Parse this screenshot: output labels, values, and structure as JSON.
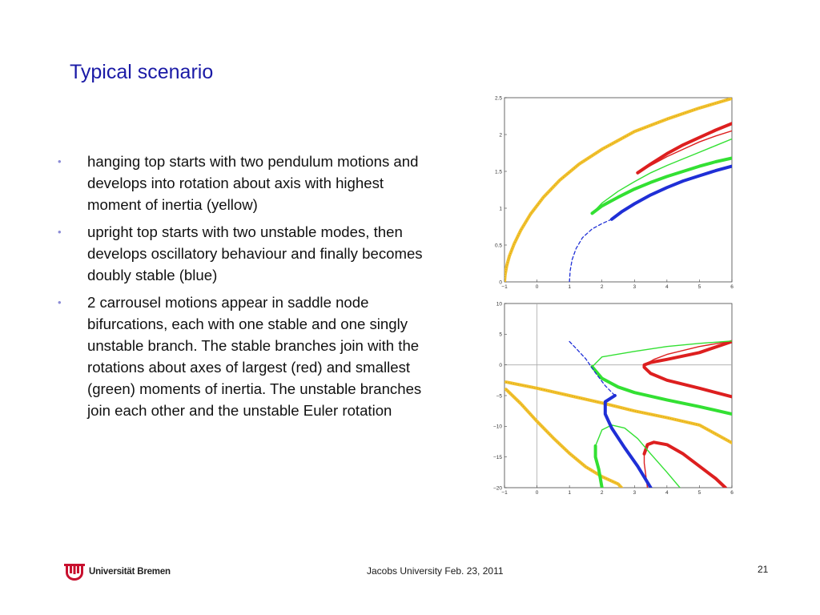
{
  "slide": {
    "title": "Typical scenario",
    "bullets": [
      "hanging top starts with two pendulum motions and develops into rotation about axis with highest moment of inertia (yellow)",
      "upright top starts with two unstable modes, then develops oscillatory behaviour and finally becomes doubly stable (blue)",
      "2 carrousel motions appear in saddle node bifurcations, each with one stable and one singly unstable branch. The stable branches join with the rotations about axes of largest (red) and smallest (green) moments of inertia. The unstable branches join each other and the unstable Euler rotation"
    ],
    "bullet_glyph": "•"
  },
  "footer": {
    "logo_text": "Universität Bremen",
    "center_text": "Jacobs University Feb. 23, 2011",
    "page_number": "21"
  },
  "colors": {
    "title": "#1a1aa6",
    "yellow": "#f2c12e",
    "red": "#dd1f1f",
    "green": "#33e033",
    "blue": "#1f2fd6",
    "logo_red": "#c8102e"
  },
  "chart_data": [
    {
      "type": "line",
      "xlim": [
        -1,
        6
      ],
      "ylim": [
        0,
        2.5
      ],
      "x_ticks": [
        "−1",
        "0",
        "1",
        "2",
        "3",
        "4",
        "5",
        "6"
      ],
      "y_ticks": [
        "0",
        "0.5",
        "1",
        "1.5",
        "2",
        "2.5"
      ],
      "series": [
        {
          "color": "yellow",
          "style": "thick",
          "points": [
            [
              -1.0,
              0.0
            ],
            [
              -0.98,
              0.1
            ],
            [
              -0.93,
              0.22
            ],
            [
              -0.85,
              0.35
            ],
            [
              -0.7,
              0.52
            ],
            [
              -0.5,
              0.7
            ],
            [
              -0.2,
              0.92
            ],
            [
              0.2,
              1.15
            ],
            [
              0.7,
              1.38
            ],
            [
              1.3,
              1.6
            ],
            [
              2.0,
              1.8
            ],
            [
              3.0,
              2.04
            ],
            [
              4.0,
              2.21
            ],
            [
              5.0,
              2.36
            ],
            [
              6.0,
              2.49
            ]
          ]
        },
        {
          "color": "red",
          "style": "thick",
          "points": [
            [
              3.1,
              1.48
            ],
            [
              3.5,
              1.6
            ],
            [
              4.0,
              1.74
            ],
            [
              4.5,
              1.86
            ],
            [
              5.0,
              1.96
            ],
            [
              5.5,
              2.06
            ],
            [
              6.0,
              2.15
            ]
          ]
        },
        {
          "color": "red",
          "style": "thin",
          "points": [
            [
              3.1,
              1.48
            ],
            [
              3.5,
              1.58
            ],
            [
              4.0,
              1.7
            ],
            [
              4.5,
              1.8
            ],
            [
              5.0,
              1.9
            ],
            [
              5.5,
              1.98
            ],
            [
              6.0,
              2.05
            ]
          ]
        },
        {
          "color": "green",
          "style": "thin",
          "points": [
            [
              1.7,
              0.93
            ],
            [
              2.0,
              1.07
            ],
            [
              2.5,
              1.23
            ],
            [
              3.0,
              1.36
            ],
            [
              3.5,
              1.48
            ],
            [
              4.0,
              1.58
            ],
            [
              4.5,
              1.67
            ],
            [
              5.0,
              1.76
            ],
            [
              5.5,
              1.85
            ],
            [
              6.0,
              1.94
            ]
          ]
        },
        {
          "color": "green",
          "style": "thick",
          "points": [
            [
              1.7,
              0.93
            ],
            [
              2.0,
              1.03
            ],
            [
              2.5,
              1.15
            ],
            [
              3.0,
              1.26
            ],
            [
              3.5,
              1.35
            ],
            [
              4.0,
              1.43
            ],
            [
              4.5,
              1.5
            ],
            [
              5.0,
              1.57
            ],
            [
              5.5,
              1.63
            ],
            [
              6.0,
              1.68
            ]
          ]
        },
        {
          "color": "blue",
          "style": "thick",
          "points": [
            [
              2.3,
              0.85
            ],
            [
              2.6,
              0.95
            ],
            [
              3.0,
              1.06
            ],
            [
              3.5,
              1.18
            ],
            [
              4.0,
              1.28
            ],
            [
              4.5,
              1.37
            ],
            [
              5.0,
              1.44
            ],
            [
              5.5,
              1.51
            ],
            [
              6.0,
              1.57
            ]
          ]
        },
        {
          "color": "blue",
          "style": "dashed",
          "points": [
            [
              1.0,
              0.0
            ],
            [
              1.02,
              0.15
            ],
            [
              1.08,
              0.3
            ],
            [
              1.2,
              0.45
            ],
            [
              1.4,
              0.6
            ],
            [
              1.7,
              0.72
            ],
            [
              2.0,
              0.79
            ],
            [
              2.3,
              0.85
            ]
          ]
        }
      ]
    },
    {
      "type": "line",
      "xlim": [
        -1,
        6
      ],
      "ylim": [
        -20,
        10
      ],
      "grid_axes": "zero lines",
      "x_ticks": [
        "−1",
        "0",
        "1",
        "2",
        "3",
        "4",
        "5",
        "6"
      ],
      "y_ticks": [
        "−20",
        "−15",
        "−10",
        "−5",
        "0",
        "5",
        "10"
      ],
      "series": [
        {
          "color": "yellow",
          "style": "thick",
          "points": [
            [
              -0.95,
              -2.8
            ],
            [
              0.0,
              -3.8
            ],
            [
              1.0,
              -5.0
            ],
            [
              2.0,
              -6.2
            ],
            [
              3.0,
              -7.5
            ],
            [
              4.0,
              -8.6
            ],
            [
              5.0,
              -9.8
            ],
            [
              6.0,
              -12.7
            ]
          ]
        },
        {
          "color": "yellow",
          "style": "thick",
          "points": [
            [
              -0.95,
              -4.0
            ],
            [
              -0.5,
              -6.3
            ],
            [
              0.0,
              -9.2
            ],
            [
              0.5,
              -11.9
            ],
            [
              1.0,
              -14.4
            ],
            [
              1.5,
              -16.6
            ],
            [
              2.0,
              -18.2
            ],
            [
              2.5,
              -19.4
            ],
            [
              2.6,
              -20.0
            ]
          ]
        },
        {
          "color": "red",
          "style": "thick",
          "points": [
            [
              6.0,
              -5.2
            ],
            [
              5.0,
              -3.8
            ],
            [
              4.0,
              -2.5
            ],
            [
              3.5,
              -1.4
            ],
            [
              3.3,
              -0.4
            ],
            [
              3.3,
              0.0
            ],
            [
              3.5,
              0.4
            ],
            [
              4.0,
              0.9
            ],
            [
              5.0,
              2.0
            ],
            [
              6.0,
              3.8
            ]
          ]
        },
        {
          "color": "red",
          "style": "thin",
          "points": [
            [
              3.3,
              0.0
            ],
            [
              3.6,
              0.9
            ],
            [
              4.0,
              1.7
            ],
            [
              5.0,
              3.0
            ],
            [
              6.0,
              3.9
            ]
          ]
        },
        {
          "color": "red",
          "style": "thick",
          "points": [
            [
              3.3,
              -14.5
            ],
            [
              3.4,
              -13.0
            ],
            [
              3.6,
              -12.6
            ],
            [
              4.0,
              -13.0
            ],
            [
              4.5,
              -14.5
            ],
            [
              5.0,
              -16.5
            ],
            [
              5.5,
              -18.5
            ],
            [
              5.8,
              -20.0
            ]
          ]
        },
        {
          "color": "red",
          "style": "thin",
          "points": [
            [
              3.3,
              -14.5
            ],
            [
              3.3,
              -16.0
            ],
            [
              3.35,
              -18.0
            ],
            [
              3.4,
              -20.0
            ]
          ]
        },
        {
          "color": "green",
          "style": "thick",
          "points": [
            [
              1.7,
              -0.3
            ],
            [
              2.0,
              -2.2
            ],
            [
              2.5,
              -3.6
            ],
            [
              3.0,
              -4.5
            ],
            [
              4.0,
              -5.7
            ],
            [
              5.0,
              -6.8
            ],
            [
              6.0,
              -8.0
            ]
          ]
        },
        {
          "color": "green",
          "style": "thin",
          "points": [
            [
              1.7,
              -0.3
            ],
            [
              2.0,
              1.3
            ],
            [
              3.0,
              2.2
            ],
            [
              4.0,
              3.0
            ],
            [
              5.0,
              3.5
            ],
            [
              6.0,
              3.9
            ]
          ]
        },
        {
          "color": "green",
          "style": "thick",
          "points": [
            [
              1.8,
              -13.2
            ],
            [
              1.8,
              -15.0
            ],
            [
              1.9,
              -17.0
            ],
            [
              2.0,
              -20.0
            ]
          ]
        },
        {
          "color": "green",
          "style": "thin",
          "points": [
            [
              1.8,
              -13.2
            ],
            [
              2.0,
              -10.6
            ],
            [
              2.3,
              -9.8
            ],
            [
              2.7,
              -10.3
            ],
            [
              3.1,
              -12.0
            ],
            [
              3.5,
              -14.5
            ],
            [
              4.0,
              -17.5
            ],
            [
              4.4,
              -20.0
            ]
          ]
        },
        {
          "color": "blue",
          "style": "thick",
          "points": [
            [
              2.4,
              -5.0
            ],
            [
              2.1,
              -6.0
            ],
            [
              2.1,
              -8.0
            ],
            [
              2.3,
              -10.3
            ],
            [
              2.7,
              -13.5
            ],
            [
              3.1,
              -16.5
            ],
            [
              3.5,
              -20.0
            ]
          ]
        },
        {
          "color": "blue",
          "style": "dashed",
          "points": [
            [
              1.0,
              3.8
            ],
            [
              1.2,
              2.7
            ],
            [
              1.5,
              1.0
            ],
            [
              1.8,
              -1.3
            ],
            [
              2.1,
              -3.4
            ],
            [
              2.4,
              -5.0
            ]
          ]
        }
      ]
    }
  ]
}
